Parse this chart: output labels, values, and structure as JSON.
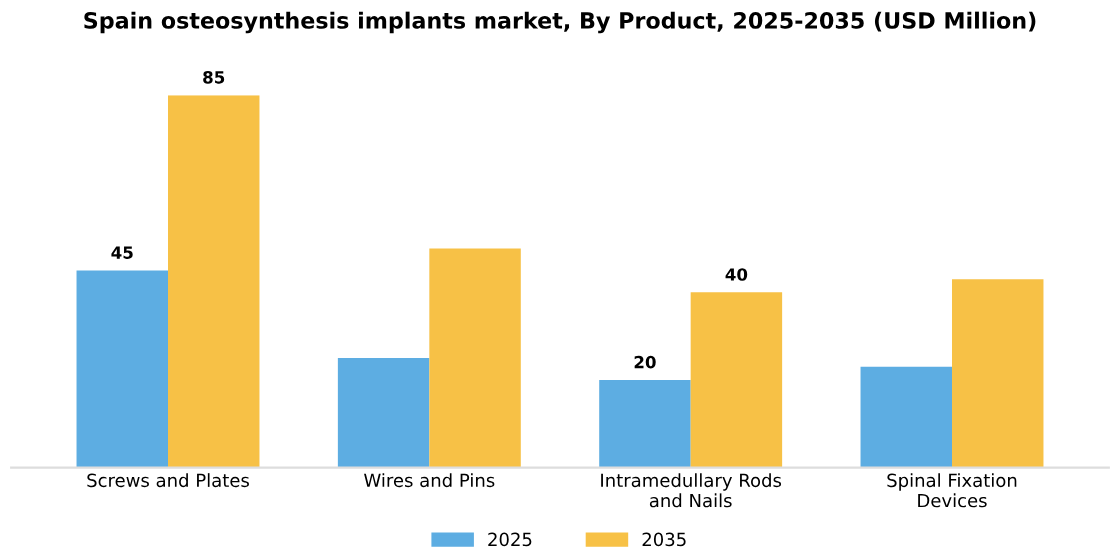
{
  "chart_data": {
    "type": "bar",
    "title": "Spain osteosynthesis implants market, By Product, 2025-2035 (USD Million)",
    "categories": [
      "Screws and Plates",
      "Wires and Pins",
      "Intramedullary Rods\nand Nails",
      "Spinal Fixation\nDevices"
    ],
    "series": [
      {
        "name": "2025",
        "color": "#5dade2",
        "values": [
          45,
          25,
          20,
          23
        ],
        "value_labels": [
          "45",
          null,
          "20",
          null
        ]
      },
      {
        "name": "2035",
        "color": "#f7c146",
        "values": [
          85,
          50,
          40,
          43
        ],
        "value_labels": [
          "85",
          null,
          "40",
          null
        ]
      }
    ],
    "ylim": [
      0,
      85
    ],
    "tick_labels": "x",
    "grid": false,
    "legend": "bottom"
  }
}
